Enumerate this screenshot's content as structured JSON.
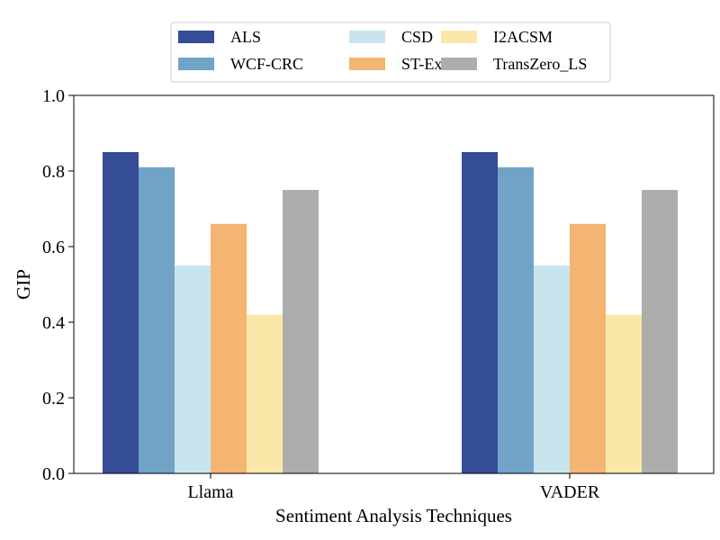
{
  "chart_data": {
    "type": "bar",
    "title": "",
    "xlabel": "Sentiment Analysis Techniques",
    "ylabel": "GIP",
    "ylim": [
      0,
      1.0
    ],
    "yticks": [
      "0.0",
      "0.2",
      "0.4",
      "0.6",
      "0.8",
      "1.0"
    ],
    "grid": false,
    "legend_position": "top-center",
    "categories": [
      "Llama",
      "VADER"
    ],
    "series": [
      {
        "name": "ALS",
        "color": "#354c97",
        "values": [
          0.85,
          0.85
        ]
      },
      {
        "name": "WCF-CRC",
        "color": "#71a3c6",
        "values": [
          0.81,
          0.81
        ]
      },
      {
        "name": "CSD",
        "color": "#c8e5ed",
        "values": [
          0.55,
          0.55
        ]
      },
      {
        "name": "ST-Exa",
        "color": "#f4b472",
        "values": [
          0.66,
          0.66
        ]
      },
      {
        "name": "I2ACSM",
        "color": "#fbe8a9",
        "values": [
          0.42,
          0.42
        ]
      },
      {
        "name": "TransZero_LS",
        "color": "#adadad",
        "values": [
          0.75,
          0.75
        ]
      }
    ]
  }
}
